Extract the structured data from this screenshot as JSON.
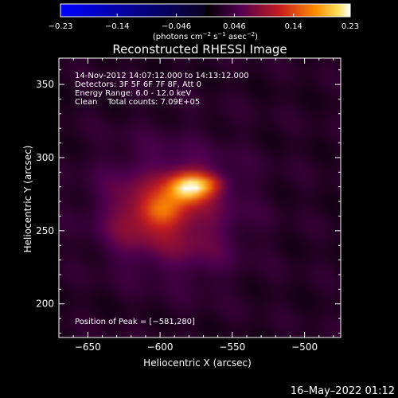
{
  "chart_data": {
    "type": "heatmap",
    "title": "Reconstructed RHESSI Image",
    "xlabel": "Heliocentric X (arcsec)",
    "ylabel": "Heliocentric Y (arcsec)",
    "xlim": [
      -670,
      -475
    ],
    "ylim": [
      177,
      368
    ],
    "x_ticks": [
      -650,
      -600,
      -550,
      -500
    ],
    "x_tick_labels": [
      "−650",
      "−600",
      "−550",
      "−500"
    ],
    "y_ticks": [
      200,
      250,
      300,
      350
    ],
    "y_tick_labels": [
      "200",
      "250",
      "300",
      "350"
    ],
    "colorbar": {
      "colormap": "rhessi-hot-with-negative-blue",
      "range": [
        -0.23,
        0.23
      ],
      "tick_values": [
        -0.23,
        -0.14,
        -0.046,
        0.046,
        0.14,
        0.23
      ],
      "tick_labels": [
        "−0.23",
        "−0.14",
        "−0.046",
        "0.046",
        "0.14",
        "0.23"
      ],
      "unit_base": "(photons cm",
      "unit_sup1": "−2",
      "unit_mid1": " s",
      "unit_sup2": "−1",
      "unit_mid2": " asec",
      "unit_sup3": "−2",
      "unit_end": ")"
    },
    "annotations": [
      "14-Nov-2012 14:07:12.000 to 14:13:12.000",
      "Detectors: 3F 5F 6F 7F 8F, Att 0",
      "Energy Range: 6.0 - 12.0 keV",
      "Clean    Total counts: 7.09E+05"
    ],
    "peak_label": "Position of Peak = [−581,280]",
    "peak": {
      "x": -581,
      "y": 280,
      "value": 0.23
    },
    "sources": [
      {
        "x": -581,
        "y": 280,
        "sx": 10,
        "sy": 7,
        "amp": 0.15
      },
      {
        "x": -566,
        "y": 282,
        "sx": 9,
        "sy": 5,
        "amp": 0.06
      },
      {
        "x": -598,
        "y": 264,
        "sx": 11,
        "sy": 8,
        "amp": 0.07
      },
      {
        "x": -592,
        "y": 272,
        "sx": 32,
        "sy": 26,
        "amp": 0.055
      },
      {
        "x": -620,
        "y": 255,
        "sx": 16,
        "sy": 20,
        "amp": 0.035
      },
      {
        "x": -578,
        "y": 240,
        "sx": 22,
        "sy": 20,
        "amp": 0.03
      }
    ]
  },
  "footer": {
    "timestamp": "16–May–2022 01:12"
  }
}
